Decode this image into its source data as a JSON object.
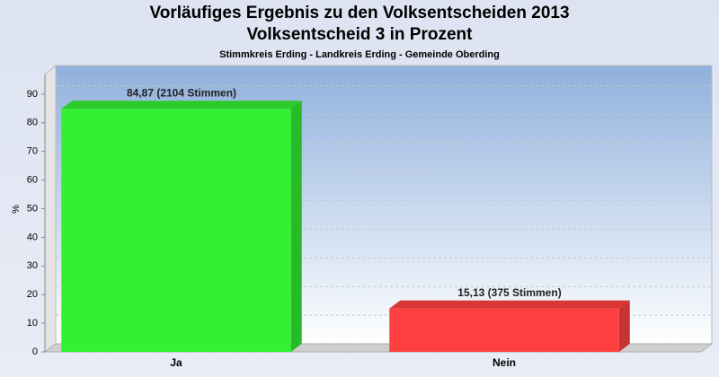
{
  "chart_data": {
    "type": "bar3d",
    "title": "Vorläufiges Ergebnis zu den Volksentscheiden 2013",
    "title_line2": "Volksentscheid 3 in Prozent",
    "subtitle": "Stimmkreis Erding - Landkreis Erding - Gemeinde Oberding",
    "y_label": "%",
    "categories": [
      "Ja",
      "Nein"
    ],
    "values": [
      84.87,
      15.13
    ],
    "value_labels": [
      "84,87 (2104 Stimmen)",
      "15,13 (375 Stimmen)"
    ],
    "colors": [
      "#33f033",
      "#ff4040"
    ],
    "ylim": [
      0,
      100
    ],
    "yticks": [
      0,
      10,
      20,
      30,
      40,
      50,
      60,
      70,
      80,
      90
    ],
    "grid": true
  }
}
